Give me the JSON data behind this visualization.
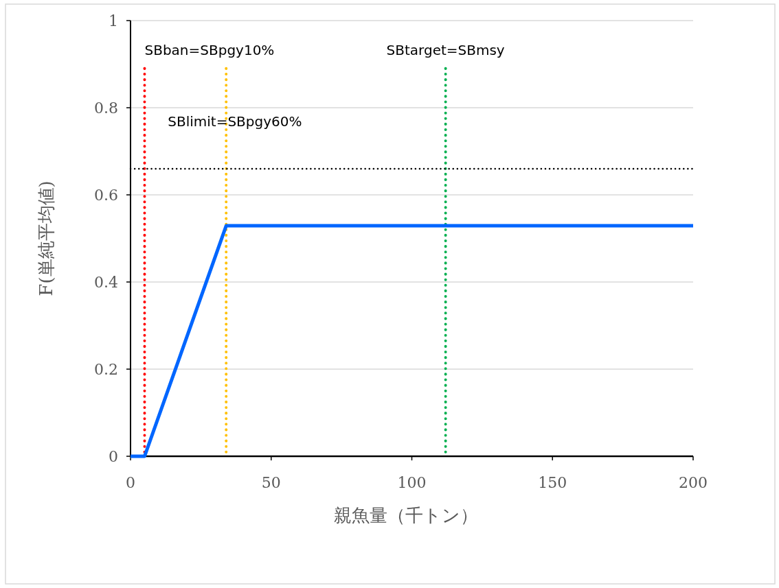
{
  "chart_data": {
    "type": "line",
    "xlabel": "親魚量（千トン）",
    "ylabel": "F(単純平均値)",
    "xlim": [
      0,
      200
    ],
    "xticks": [
      0,
      50,
      100,
      150,
      200
    ],
    "ylim": [
      0,
      1
    ],
    "yticks": [
      0,
      0.2,
      0.4,
      0.6,
      0.8,
      1
    ],
    "grid": "y",
    "series": [
      {
        "color": "#0066ff",
        "x": [
          0,
          5,
          34,
          200
        ],
        "values": [
          0,
          0,
          0.529,
          0.529
        ]
      }
    ],
    "ref_lines": [
      {
        "axis": "x",
        "value": 5,
        "label": "SBban=SBpgy10%",
        "color": "#ff0000",
        "line_style": "dotted"
      },
      {
        "axis": "x",
        "value": 34,
        "label": "SBlimit=SBpgy60%",
        "color": "#ffc000",
        "line_style": "dotted"
      },
      {
        "axis": "x",
        "value": 112,
        "label": "SBtarget=SBmsy",
        "color": "#00b050",
        "line_style": "dotted"
      },
      {
        "axis": "y",
        "value": 0.66,
        "color": "#000000",
        "line_style": "dotted"
      }
    ]
  }
}
